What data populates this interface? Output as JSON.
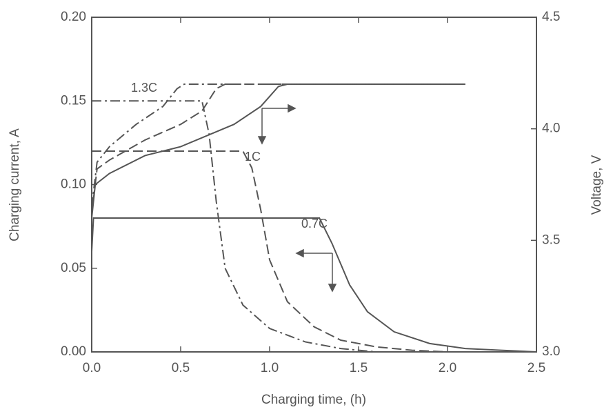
{
  "chart_data": {
    "type": "line",
    "xlabel": "Charging time, (h)",
    "ylabel": "Charging current, A",
    "y2label": "Voltage, V",
    "xlim": [
      0,
      2.5
    ],
    "ylim": [
      0,
      0.2
    ],
    "y2lim": [
      3.0,
      4.5
    ],
    "xticks": [
      {
        "value": 0,
        "label": "0.0"
      },
      0.5,
      {
        "value": 1,
        "label": "1.0"
      },
      1.5,
      {
        "value": 2,
        "label": "2.0"
      },
      2.5
    ],
    "yticks": [
      {
        "value": 0,
        "label": "0.00"
      },
      0.05,
      {
        "value": 0.1,
        "label": "0.10"
      },
      0.15,
      {
        "value": 0.2,
        "label": "0.20"
      }
    ],
    "y2ticks": [
      {
        "value": 3,
        "label": "3.0"
      },
      3.5,
      {
        "value": 4,
        "label": "4.0"
      },
      4.5
    ],
    "annotations": [
      "1.3C",
      "1C",
      "0.7C"
    ],
    "series": [
      {
        "color": "#555555",
        "style": "solid",
        "x": [
          0,
          0.01,
          1.28,
          1.35,
          1.45,
          1.55,
          1.7,
          1.9,
          2.1,
          2.3,
          2.5
        ],
        "values": [
          0.06,
          0.08,
          0.08,
          0.065,
          0.04,
          0.024,
          0.012,
          0.005,
          0.002,
          0.001,
          0
        ]
      },
      {
        "color": "#555555",
        "style": "dashed",
        "x": [
          0,
          0.85,
          0.9,
          0.95,
          1.0,
          1.1,
          1.25,
          1.4,
          1.6,
          1.8,
          2.0
        ],
        "values": [
          0.12,
          0.12,
          0.11,
          0.085,
          0.055,
          0.03,
          0.015,
          0.007,
          0.003,
          0.001,
          0
        ]
      },
      {
        "color": "#555555",
        "style": "dashdot",
        "x": [
          0,
          0.62,
          0.66,
          0.7,
          0.75,
          0.85,
          1.0,
          1.2,
          1.4,
          1.6
        ],
        "values": [
          0.15,
          0.15,
          0.13,
          0.09,
          0.05,
          0.028,
          0.014,
          0.006,
          0.002,
          0
        ]
      },
      {
        "color": "#555555",
        "style": "solid",
        "axis": "y2",
        "x": [
          0,
          0.02,
          0.1,
          0.3,
          0.5,
          0.8,
          0.95,
          1.05,
          1.1,
          2.1
        ],
        "values": [
          3.6,
          3.75,
          3.8,
          3.88,
          3.92,
          4.02,
          4.1,
          4.19,
          4.2,
          4.2
        ]
      },
      {
        "color": "#555555",
        "style": "dashed",
        "axis": "y2",
        "x": [
          0,
          0.03,
          0.1,
          0.3,
          0.5,
          0.62,
          0.7,
          0.75,
          2.1
        ],
        "values": [
          3.62,
          3.82,
          3.86,
          3.95,
          4.02,
          4.08,
          4.18,
          4.2,
          4.2
        ]
      },
      {
        "color": "#555555",
        "style": "dashdot",
        "axis": "y2",
        "x": [
          0,
          0.03,
          0.1,
          0.25,
          0.4,
          0.48,
          0.52,
          2.1
        ],
        "values": [
          3.65,
          3.85,
          3.92,
          4.02,
          4.1,
          4.18,
          4.2,
          4.2
        ]
      }
    ]
  }
}
